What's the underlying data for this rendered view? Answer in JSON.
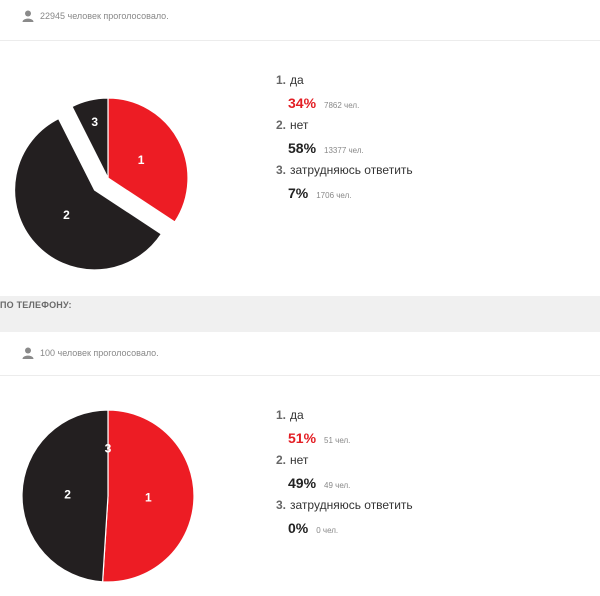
{
  "colors": {
    "red": "#ED1C24",
    "black": "#231F20",
    "accent": "#e31e24"
  },
  "icons": {
    "voters": "user-icon"
  },
  "poll1": {
    "votes_text": "22945 человек проголосовало.",
    "options": [
      {
        "num": "1.",
        "label": "да",
        "percent": "34%",
        "count": "7862 чел."
      },
      {
        "num": "2.",
        "label": "нет",
        "percent": "58%",
        "count": "13377 чел."
      },
      {
        "num": "3.",
        "label": "затрудняюсь ответить",
        "percent": "7%",
        "count": "1706 чел."
      }
    ]
  },
  "phone_label": "ПО ТЕЛЕФОНУ:",
  "poll2": {
    "votes_text": "100 человек проголосовало.",
    "options": [
      {
        "num": "1.",
        "label": "да",
        "percent": "51%",
        "count": "51 чел."
      },
      {
        "num": "2.",
        "label": "нет",
        "percent": "49%",
        "count": "49 чел."
      },
      {
        "num": "3.",
        "label": "затрудняюсь ответить",
        "percent": "0%",
        "count": "0 чел."
      }
    ]
  },
  "chart_data": [
    {
      "type": "pie",
      "slice_labels": [
        "1",
        "2",
        "3"
      ],
      "values": [
        7862,
        13377,
        1706
      ],
      "percents": [
        34,
        58,
        7
      ],
      "colors": [
        "#ED1C24",
        "#231F20",
        "#231F20"
      ],
      "exploded": [
        false,
        true,
        false
      ]
    },
    {
      "type": "pie",
      "slice_labels": [
        "1",
        "2",
        "3"
      ],
      "values": [
        51,
        49,
        0
      ],
      "percents": [
        51,
        49,
        0
      ],
      "colors": [
        "#ED1C24",
        "#231F20",
        "#231F20"
      ],
      "exploded": [
        false,
        false,
        false
      ]
    }
  ]
}
